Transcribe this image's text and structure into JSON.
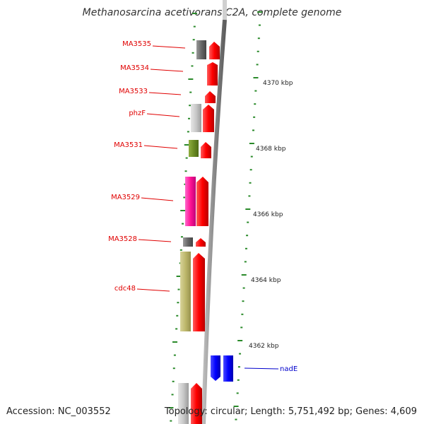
{
  "title": "Methanosarcina acetivorans C2A, complete genome",
  "accession": "Accession: NC_003552",
  "topology": "Topology: circular; Length: 5,751,492 bp; Genes: 4,609",
  "colors": {
    "backbone": "#8c8c8c",
    "tick": "#2a8a2a",
    "red_label": "#e00000",
    "blue_label": "#0000cc"
  },
  "scale_labels": [
    "4370 kbp",
    "4368 kbp",
    "4366 kbp",
    "4364 kbp",
    "4362 kbp"
  ],
  "gene_labels": [
    {
      "name": "MA3535",
      "color": "#e00000"
    },
    {
      "name": "MA3534",
      "color": "#e00000"
    },
    {
      "name": "MA3533",
      "color": "#e00000"
    },
    {
      "name": "phzF",
      "color": "#e00000"
    },
    {
      "name": "MA3531",
      "color": "#e00000"
    },
    {
      "name": "MA3529",
      "color": "#e00000"
    },
    {
      "name": "MA3528",
      "color": "#e00000"
    },
    {
      "name": "cdc48",
      "color": "#e00000"
    },
    {
      "name": "nadE",
      "color": "#0000cc"
    }
  ]
}
